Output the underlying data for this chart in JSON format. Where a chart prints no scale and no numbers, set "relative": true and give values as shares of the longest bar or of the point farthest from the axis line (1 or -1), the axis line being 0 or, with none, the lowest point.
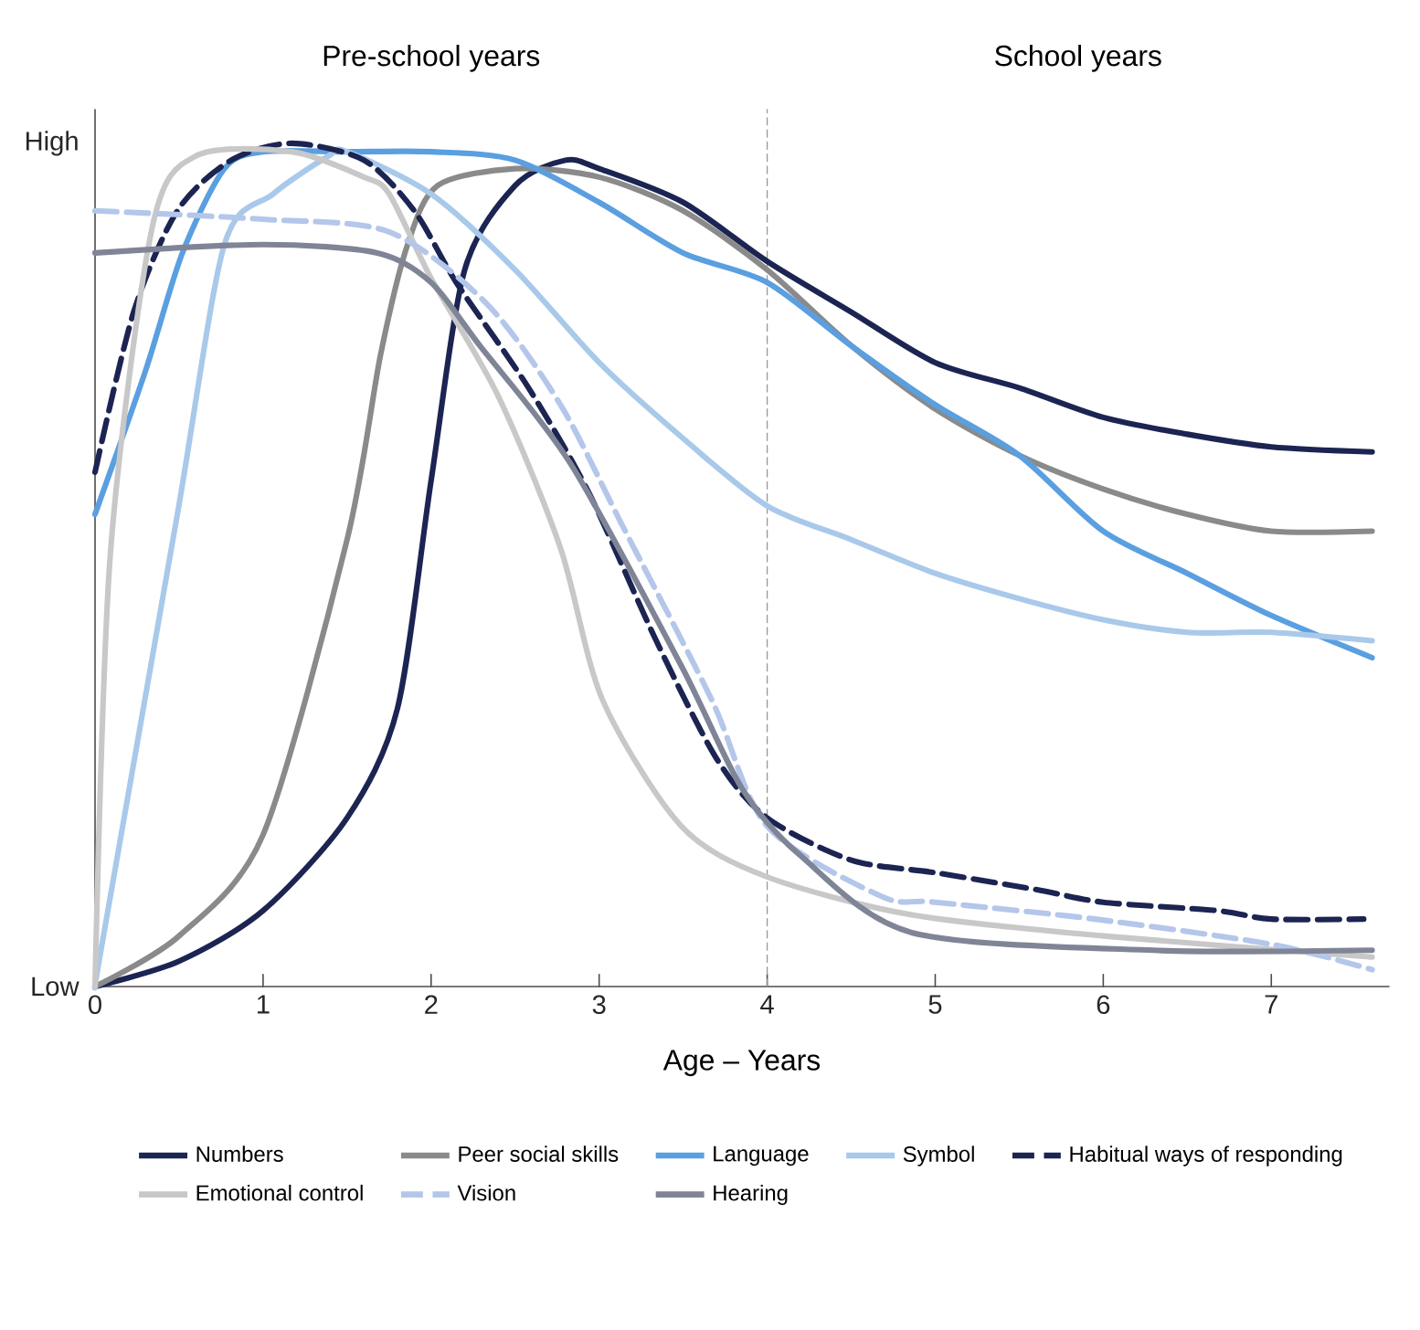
{
  "chart_data": {
    "type": "line",
    "xlabel": "Age – Years",
    "annotations": [
      "Pre-school years",
      "School years",
      "Low",
      "High"
    ],
    "relative": true,
    "xlim": [
      0,
      7.7
    ],
    "xticks": [
      0,
      1,
      2,
      3,
      4,
      5,
      6,
      7
    ],
    "legend": "bottom",
    "grid": false,
    "ref_lines": [
      {
        "axis": "x",
        "value": 4,
        "color": "#999999",
        "line_style": "dashed"
      }
    ],
    "series": [
      {
        "name": "Numbers",
        "color": "#1c2452",
        "x": [
          0,
          0.5,
          1,
          1.5,
          1.8,
          2,
          2.2,
          2.5,
          2.8,
          3,
          3.5,
          4,
          4.5,
          5,
          5.5,
          6,
          6.5,
          7,
          7.6
        ],
        "values": [
          0,
          0.03,
          0.09,
          0.2,
          0.33,
          0.6,
          0.85,
          0.95,
          0.98,
          0.97,
          0.93,
          0.86,
          0.8,
          0.74,
          0.71,
          0.675,
          0.655,
          0.64,
          0.634
        ]
      },
      {
        "name": "Peer social skills",
        "color": "#8a8a8a",
        "x": [
          0,
          0.5,
          1,
          1.5,
          1.7,
          1.86,
          2.04,
          2.5,
          3,
          3.5,
          4,
          4.5,
          5,
          5.5,
          6,
          6.5,
          7,
          7.6
        ],
        "values": [
          0,
          0.06,
          0.18,
          0.53,
          0.75,
          0.88,
          0.95,
          0.97,
          0.96,
          0.92,
          0.85,
          0.76,
          0.685,
          0.63,
          0.59,
          0.56,
          0.54,
          0.54
        ]
      },
      {
        "name": "Language",
        "color": "#5a9fe0",
        "x": [
          0,
          0.3,
          0.52,
          0.77,
          1,
          1.5,
          2,
          2.5,
          3,
          3.5,
          4,
          4.5,
          5,
          5.5,
          6,
          6.5,
          7,
          7.6
        ],
        "values": [
          0.56,
          0.73,
          0.87,
          0.97,
          0.99,
          0.99,
          0.99,
          0.98,
          0.93,
          0.87,
          0.835,
          0.76,
          0.69,
          0.63,
          0.54,
          0.49,
          0.44,
          0.39
        ]
      },
      {
        "name": "Symbol",
        "color": "#a9c9ea",
        "x": [
          0,
          0.05,
          0.49,
          0.77,
          1.06,
          1.39,
          1.5,
          2,
          2.5,
          3,
          3.5,
          4,
          4.5,
          5,
          5.5,
          6,
          6.5,
          7,
          7.6
        ],
        "values": [
          0,
          0.06,
          0.56,
          0.88,
          0.94,
          0.985,
          0.99,
          0.94,
          0.85,
          0.74,
          0.65,
          0.57,
          0.53,
          0.49,
          0.46,
          0.435,
          0.42,
          0.42,
          0.41
        ]
      },
      {
        "name": "Habitual ways of responding",
        "color": "#1c2452",
        "line_style": "dashed",
        "x": [
          0,
          0.23,
          0.49,
          0.81,
          1.17,
          1.6,
          1.9,
          2.15,
          2.58,
          2.94,
          3.34,
          3.7,
          4,
          4.5,
          5,
          5.6,
          6,
          6.68,
          7,
          7.55
        ],
        "values": [
          0.61,
          0.8,
          0.92,
          0.98,
          1.0,
          0.98,
          0.92,
          0.835,
          0.71,
          0.585,
          0.41,
          0.27,
          0.2,
          0.15,
          0.135,
          0.115,
          0.1,
          0.09,
          0.08,
          0.08
        ]
      },
      {
        "name": "Emotional control",
        "color": "#c8c8c8",
        "x": [
          0,
          0.09,
          0.34,
          0.6,
          1.17,
          1.6,
          1.75,
          2,
          2.4,
          2.77,
          3.02,
          3.49,
          4,
          4.86,
          6,
          7.6
        ],
        "values": [
          0,
          0.51,
          0.9,
          0.985,
          0.99,
          0.96,
          0.94,
          0.84,
          0.7,
          0.52,
          0.34,
          0.19,
          0.13,
          0.085,
          0.06,
          0.035
        ]
      },
      {
        "name": "Vision",
        "color": "#b4c6ea",
        "line_style": "dashed",
        "x": [
          0,
          1,
          1.75,
          2.33,
          2.77,
          3.13,
          3.67,
          4,
          4.68,
          5,
          5.95,
          7,
          7.6
        ],
        "values": [
          0.92,
          0.91,
          0.895,
          0.81,
          0.69,
          0.55,
          0.34,
          0.19,
          0.107,
          0.1,
          0.08,
          0.05,
          0.02
        ]
      },
      {
        "name": "Hearing",
        "color": "#7f8596",
        "x": [
          0,
          1,
          1.68,
          2,
          2.29,
          2.83,
          3.49,
          3.85,
          4.2,
          4.86,
          6.3,
          7.6
        ],
        "values": [
          0.87,
          0.88,
          0.87,
          0.835,
          0.76,
          0.62,
          0.38,
          0.235,
          0.155,
          0.064,
          0.043,
          0.043
        ]
      }
    ]
  }
}
